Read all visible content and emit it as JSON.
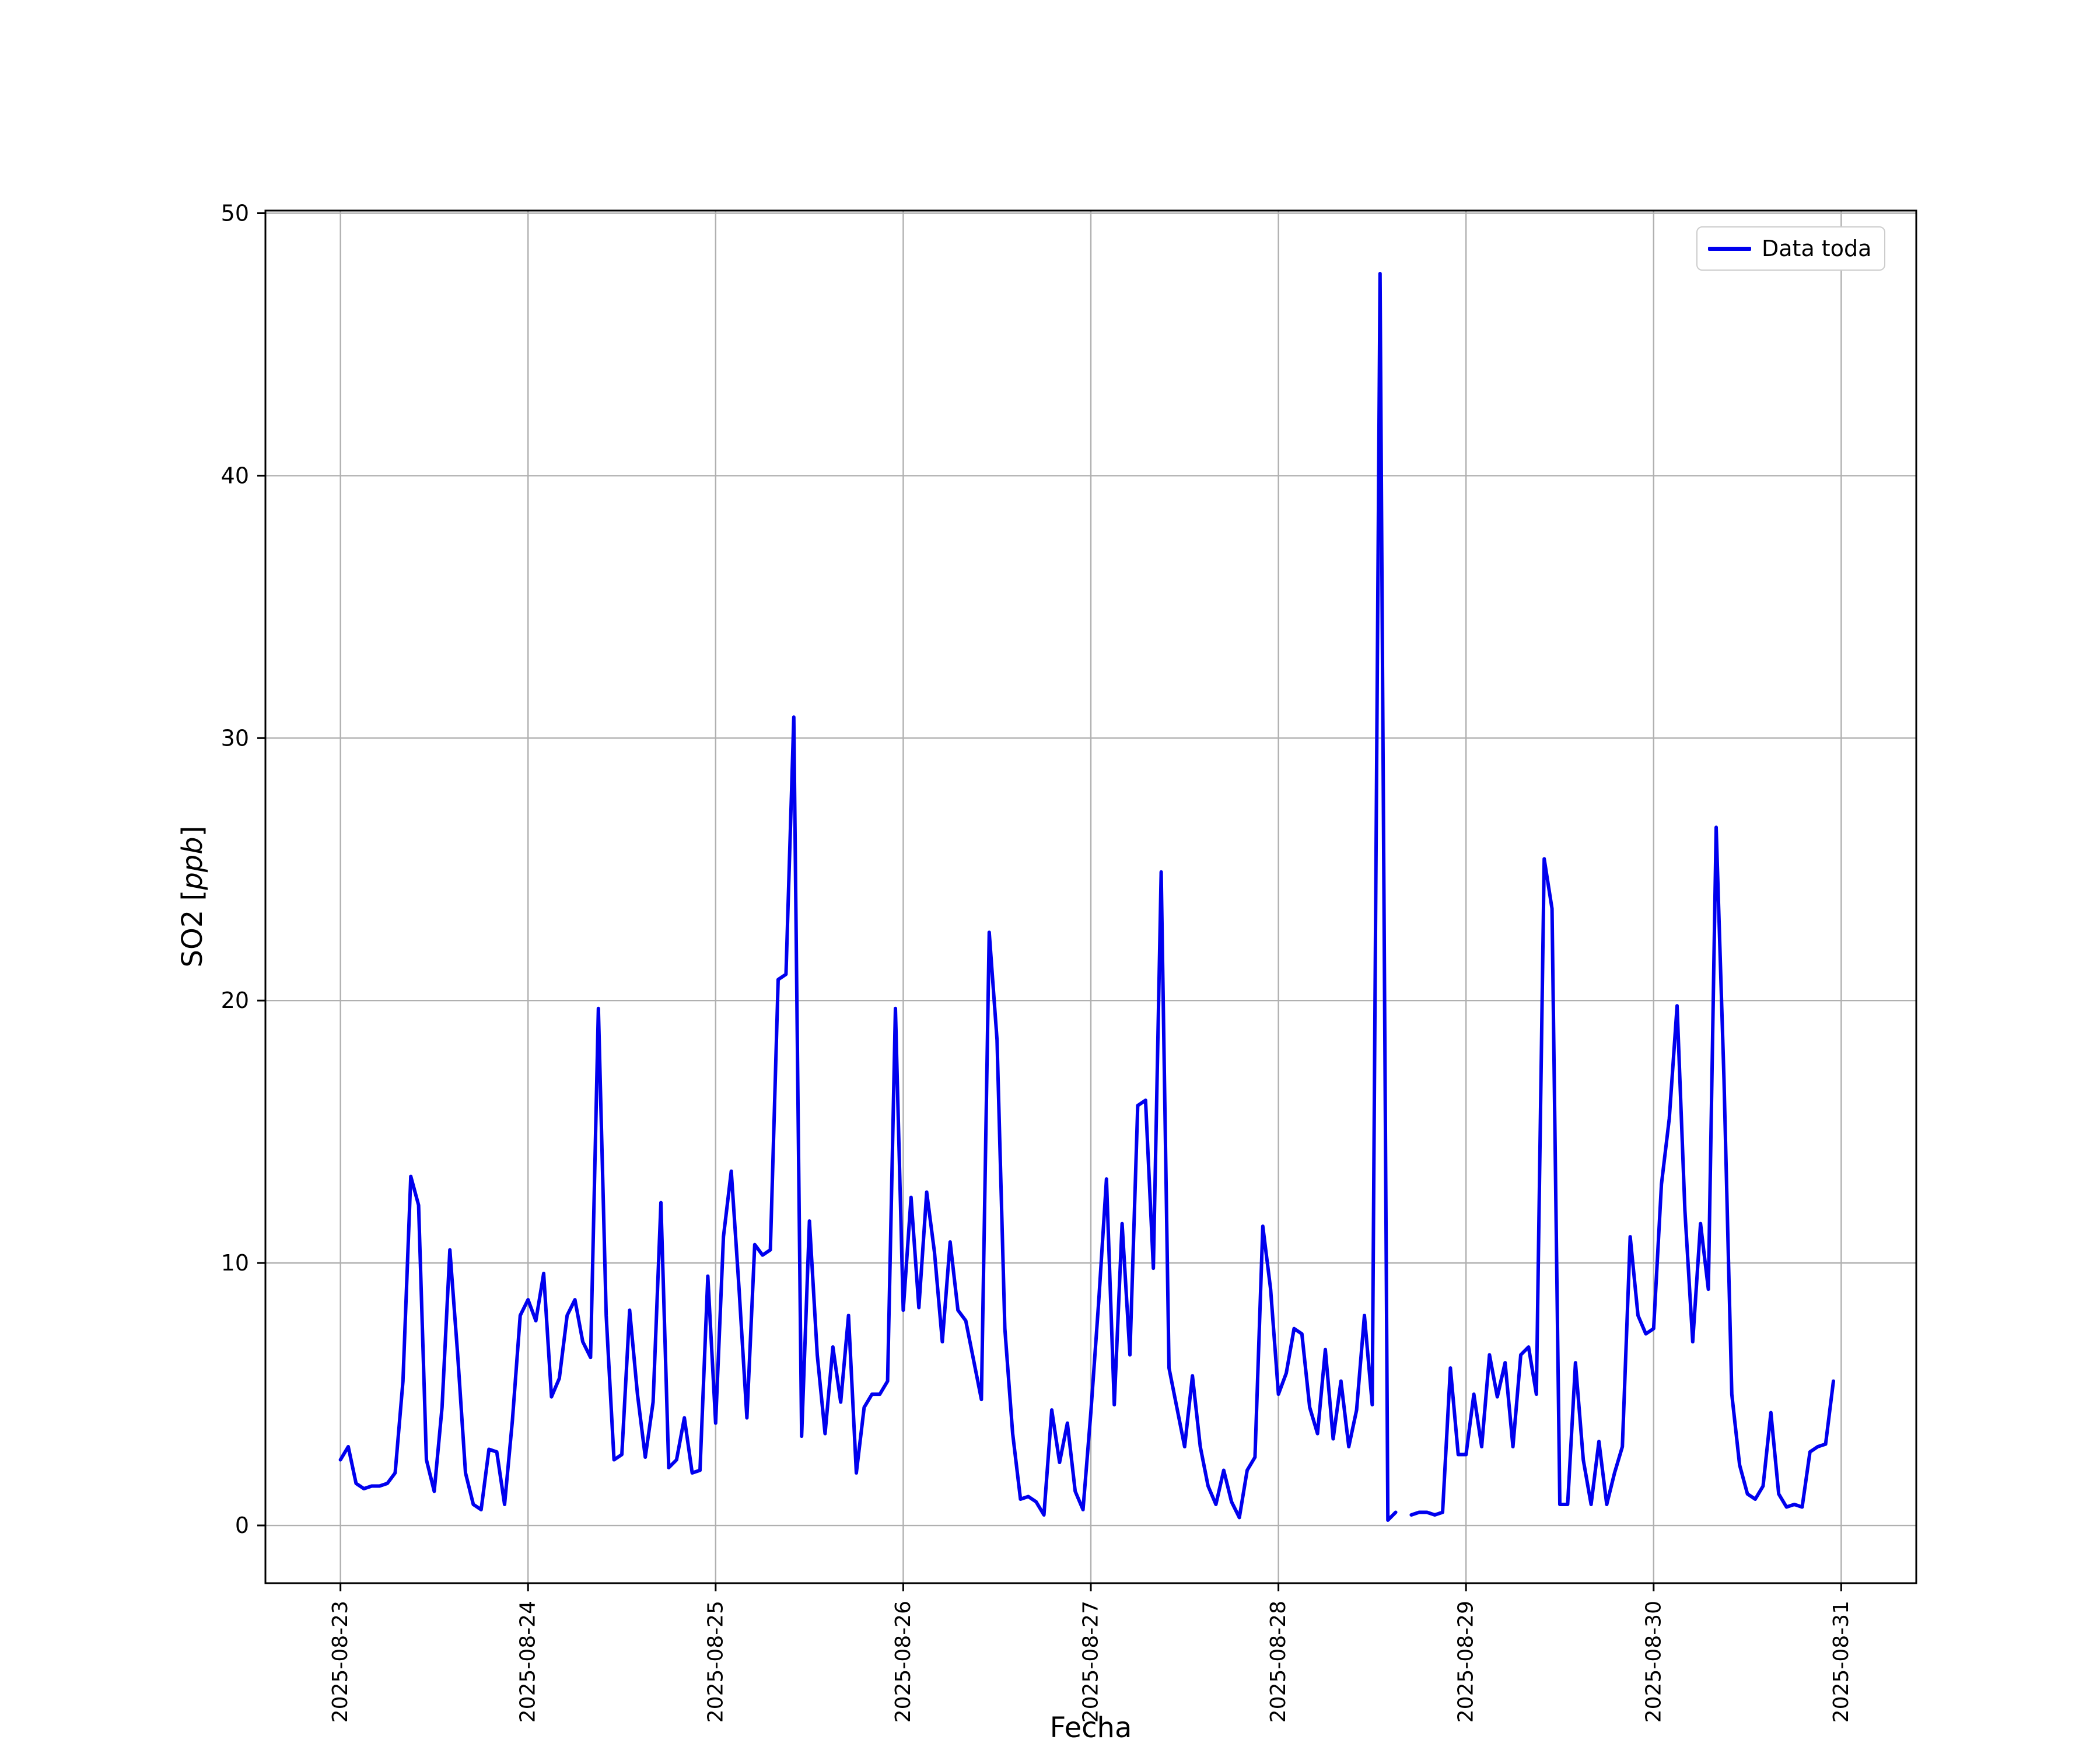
{
  "figure": {
    "background": "#ffffff"
  },
  "labels": {
    "xlabel": "Fecha",
    "ylabel_prefix": "SO2 [",
    "ylabel_unit": "ppb",
    "ylabel_suffix": "]"
  },
  "legend": {
    "label": "Data toda"
  },
  "chart_data": {
    "type": "line",
    "title": "",
    "xlabel": "Fecha",
    "ylabel": "SO2 [ppb]",
    "legend_position": "upper right",
    "grid": true,
    "series_name": "Data toda",
    "x_start": "2025-08-23 00:00",
    "x_unit": "hours_from_start",
    "xlim": [
      -9.6,
      201.6
    ],
    "ylim": [
      -2.2,
      50.1
    ],
    "yticks": [
      0,
      10,
      20,
      30,
      40,
      50
    ],
    "xticks": [
      {
        "hour": 0,
        "label": "2025-08-23"
      },
      {
        "hour": 24,
        "label": "2025-08-24"
      },
      {
        "hour": 48,
        "label": "2025-08-25"
      },
      {
        "hour": 72,
        "label": "2025-08-26"
      },
      {
        "hour": 96,
        "label": "2025-08-27"
      },
      {
        "hour": 120,
        "label": "2025-08-28"
      },
      {
        "hour": 144,
        "label": "2025-08-29"
      },
      {
        "hour": 168,
        "label": "2025-08-30"
      },
      {
        "hour": 192,
        "label": "2025-08-31"
      }
    ],
    "style": {
      "line_color": "#0000ee",
      "grid_color": "#b0b0b0",
      "axis_color": "#000000",
      "line_width": 6
    },
    "values": [
      2.5,
      3.0,
      1.6,
      1.4,
      1.5,
      1.5,
      1.6,
      2.0,
      5.5,
      13.3,
      12.2,
      2.5,
      1.3,
      4.5,
      10.5,
      6.5,
      2.0,
      0.8,
      0.6,
      2.9,
      2.8,
      0.8,
      4.0,
      8.0,
      8.6,
      7.8,
      9.6,
      4.9,
      5.6,
      8.0,
      8.6,
      7.0,
      6.4,
      19.7,
      8.0,
      2.5,
      2.7,
      8.2,
      5.0,
      2.6,
      4.7,
      12.3,
      2.2,
      2.5,
      4.1,
      2.0,
      2.1,
      9.5,
      3.9,
      11.0,
      13.5,
      9.0,
      4.1,
      10.7,
      10.3,
      10.5,
      20.8,
      21.0,
      30.8,
      3.4,
      11.6,
      6.5,
      3.5,
      6.8,
      4.7,
      8.0,
      2.0,
      4.5,
      5.0,
      5.0,
      5.5,
      19.7,
      8.2,
      12.5,
      8.3,
      12.7,
      10.4,
      7.0,
      10.8,
      8.2,
      7.8,
      6.3,
      4.8,
      22.6,
      18.5,
      7.5,
      3.5,
      1.0,
      1.1,
      0.9,
      0.4,
      4.4,
      2.4,
      3.9,
      1.3,
      0.6,
      4.3,
      8.5,
      13.2,
      4.6,
      11.5,
      6.5,
      16.0,
      16.2,
      9.8,
      24.9,
      6.0,
      4.5,
      3.0,
      5.7,
      3.0,
      1.5,
      0.8,
      2.1,
      0.9,
      0.3,
      2.1,
      2.6,
      11.4,
      9.0,
      5.0,
      5.8,
      7.5,
      7.3,
      4.5,
      3.5,
      6.7,
      3.3,
      5.5,
      3.0,
      4.4,
      8.0,
      4.6,
      47.7,
      0.2,
      0.5,
      null,
      0.4,
      0.5,
      0.5,
      0.4,
      0.5,
      6.0,
      2.7,
      2.7,
      5.0,
      3.0,
      6.5,
      4.9,
      6.2,
      3.0,
      6.5,
      6.8,
      5.0,
      25.4,
      23.5,
      0.8,
      0.8,
      6.2,
      2.5,
      0.8,
      3.2,
      0.8,
      2.0,
      3.0,
      11.0,
      8.0,
      7.3,
      7.5,
      13.0,
      15.5,
      19.8,
      12.0,
      7.0,
      11.5,
      9.0,
      26.6,
      17.0,
      5.0,
      2.3,
      1.2,
      1.0,
      1.5,
      4.3,
      1.2,
      0.7,
      0.8,
      0.7,
      2.8,
      3.0,
      3.1,
      5.5
    ]
  }
}
